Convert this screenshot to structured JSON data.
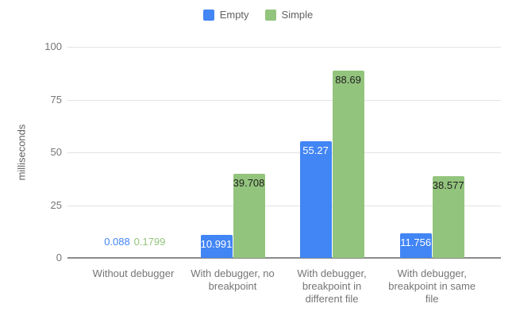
{
  "legend": {
    "items": [
      {
        "label": "Empty",
        "color": "#4285F4"
      },
      {
        "label": "Simple",
        "color": "#93C47D"
      }
    ]
  },
  "chart_data": {
    "type": "bar",
    "title": "",
    "categories": [
      "Without debugger",
      "With debugger, no breakpoint",
      "With debugger, breakpoint in different file",
      "With debugger, breakpoint in same file"
    ],
    "series": [
      {
        "name": "Empty",
        "color": "#4285F4",
        "label_color_inside": "#ffffff",
        "values": [
          0.088,
          10.991,
          55.27,
          11.756
        ],
        "labels": [
          "0.088",
          "10.991",
          "55.27",
          "11.756"
        ]
      },
      {
        "name": "Simple",
        "color": "#93C47D",
        "label_color_inside": "#212121",
        "values": [
          0.1799,
          39.708,
          88.69,
          38.577
        ],
        "labels": [
          "0.1799",
          "39.708",
          "88.69",
          "38.577"
        ]
      }
    ],
    "xlabel": "",
    "ylabel": "milliseconds",
    "ylim": [
      0,
      100
    ],
    "yticks": [
      0,
      25,
      50,
      75,
      100
    ],
    "grid": true,
    "legend_position": "top",
    "colors": {
      "grid": "#e3e3e3",
      "axis_line": "#8a8a8a",
      "tick_text": "#757575",
      "category_text": "#757575"
    }
  }
}
